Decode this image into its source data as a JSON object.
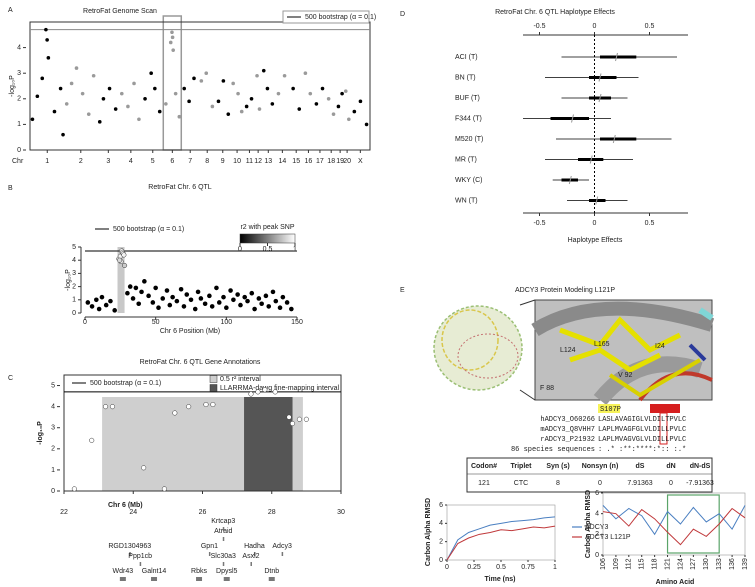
{
  "panel_labels": [
    "A",
    "B",
    "C",
    "D",
    "E"
  ],
  "chart_data": [
    {
      "type": "scatter",
      "title": "RetroFat Genome Scan",
      "y_label": "-log₁₀P",
      "x_label": "Chr",
      "xlim": [
        0,
        2778
      ],
      "ylim": [
        0,
        5
      ],
      "yticks": [
        0,
        1,
        2,
        3,
        4
      ],
      "xticks": [
        {
          "value": 141,
          "label": "1"
        },
        {
          "value": 415,
          "label": "2"
        },
        {
          "value": 640,
          "label": "3"
        },
        {
          "value": 824,
          "label": "4"
        },
        {
          "value": 1003,
          "label": "5"
        },
        {
          "value": 1163,
          "label": "6"
        },
        {
          "value": 1309,
          "label": "7"
        },
        {
          "value": 1448,
          "label": "8"
        },
        {
          "value": 1575,
          "label": "9"
        },
        {
          "value": 1692,
          "label": "10"
        },
        {
          "value": 1793,
          "label": "11"
        },
        {
          "value": 1864,
          "label": "12"
        },
        {
          "value": 1947,
          "label": "13"
        },
        {
          "value": 2062,
          "label": "14"
        },
        {
          "value": 2175,
          "label": "15"
        },
        {
          "value": 2275,
          "label": "16"
        },
        {
          "value": 2369,
          "label": "17"
        },
        {
          "value": 2461,
          "label": "18"
        },
        {
          "value": 2534,
          "label": "19"
        },
        {
          "value": 2591,
          "label": "20"
        },
        {
          "value": 2699,
          "label": "X"
        }
      ],
      "threshold": 4.7,
      "threshold_label": "500 bootstrap (α = 0.1)",
      "frame": true,
      "alternate_colors": [
        "#000000",
        "#9a9a9a"
      ],
      "regions": [
        {
          "x": [
            1089,
            1236
          ],
          "color": "#999999",
          "style": "outline"
        }
      ],
      "x": [
        20,
        60,
        100,
        130,
        140,
        150,
        200,
        250,
        270,
        300,
        340,
        380,
        430,
        480,
        520,
        570,
        600,
        650,
        700,
        750,
        800,
        850,
        890,
        940,
        990,
        1020,
        1060,
        1110,
        1150,
        1160,
        1165,
        1170,
        1190,
        1220,
        1260,
        1300,
        1340,
        1400,
        1440,
        1490,
        1540,
        1580,
        1620,
        1660,
        1700,
        1730,
        1770,
        1810,
        1855,
        1875,
        1910,
        1940,
        1980,
        2030,
        2080,
        2150,
        2200,
        2250,
        2290,
        2340,
        2390,
        2440,
        2480,
        2520,
        2550,
        2580,
        2605,
        2650,
        2700,
        2750
      ],
      "values": [
        1.2,
        2.1,
        2.8,
        4.7,
        4.3,
        3.6,
        1.5,
        2.4,
        0.6,
        1.8,
        2.6,
        3.2,
        2.2,
        1.4,
        2.9,
        1.1,
        2.0,
        2.4,
        1.6,
        2.2,
        1.7,
        2.6,
        1.2,
        2.0,
        3.0,
        2.4,
        1.5,
        1.8,
        4.2,
        4.6,
        4.4,
        3.9,
        2.2,
        1.3,
        2.4,
        1.9,
        2.8,
        2.7,
        3.0,
        1.7,
        1.9,
        2.7,
        1.4,
        2.6,
        2.2,
        1.5,
        1.7,
        2.0,
        2.9,
        1.6,
        3.1,
        2.4,
        1.8,
        2.2,
        2.9,
        2.4,
        1.6,
        3.0,
        2.2,
        1.8,
        2.4,
        2.0,
        1.4,
        1.7,
        2.2,
        2.3,
        1.2,
        1.5,
        1.9,
        1.0
      ]
    },
    {
      "type": "scatter",
      "title": "RetroFat Chr. 6 QTL",
      "y_label": "-log₁₀P",
      "x_label": "Chr 6 Position (Mb)",
      "xlim": [
        0,
        150
      ],
      "ylim": [
        0,
        5
      ],
      "xticks": [
        0,
        50,
        100,
        150
      ],
      "yticks": [
        0,
        1,
        2,
        3,
        4,
        5
      ],
      "threshold": 4.7,
      "threshold_label": "500 bootstrap (α = 0.1)",
      "frame": false,
      "colorbar": {
        "label": "r2 with peak SNP",
        "ticks": [
          0,
          0.5,
          1
        ]
      },
      "regions": [
        {
          "x": [
            23,
            28
          ],
          "color": "#c8c8c8"
        }
      ],
      "x": [
        24,
        25,
        26,
        26.5,
        27,
        27.5,
        25.5,
        28,
        24.5,
        2,
        5,
        8,
        10,
        12,
        15,
        18,
        21,
        30,
        32,
        34,
        36,
        38,
        40,
        42,
        45,
        48,
        50,
        52,
        55,
        58,
        60,
        62,
        65,
        68,
        70,
        72,
        75,
        78,
        80,
        82,
        85,
        88,
        90,
        93,
        95,
        98,
        100,
        103,
        105,
        108,
        110,
        113,
        115,
        118,
        120,
        123,
        125,
        128,
        130,
        133,
        135,
        138,
        140,
        143,
        146
      ],
      "values": [
        4.1,
        4.3,
        4.7,
        4.6,
        4.5,
        4.4,
        3.9,
        3.6,
        4.0,
        0.8,
        0.5,
        1.0,
        0.3,
        1.2,
        0.6,
        0.9,
        0.2,
        1.5,
        2.0,
        1.1,
        1.9,
        0.7,
        1.6,
        2.4,
        1.3,
        0.8,
        1.9,
        0.4,
        1.1,
        1.7,
        0.6,
        1.2,
        0.9,
        1.8,
        0.5,
        1.4,
        1.0,
        0.3,
        1.6,
        1.1,
        0.7,
        1.3,
        0.5,
        1.9,
        0.8,
        1.2,
        0.4,
        1.7,
        1.0,
        1.4,
        0.6,
        1.2,
        0.9,
        1.5,
        0.3,
        1.1,
        0.7,
        1.3,
        0.5,
        1.6,
        0.9,
        0.4,
        1.2,
        0.8,
        0.3
      ],
      "r2": [
        0.9,
        0.95,
        1,
        1,
        1,
        0.95,
        0.9,
        0.8,
        0.85,
        0,
        0,
        0,
        0,
        0,
        0,
        0,
        0,
        0,
        0,
        0,
        0,
        0,
        0,
        0,
        0,
        0,
        0,
        0,
        0,
        0,
        0,
        0,
        0,
        0,
        0,
        0,
        0,
        0,
        0,
        0,
        0,
        0,
        0,
        0,
        0,
        0,
        0,
        0,
        0,
        0,
        0,
        0,
        0,
        0,
        0,
        0,
        0,
        0,
        0,
        0,
        0,
        0,
        0,
        0,
        0
      ]
    },
    {
      "type": "scatter",
      "title": "RetroFat Chr. 6 QTL Gene Annotations",
      "y_label": "-log₁₀P",
      "x_label": "Chr 6 (Mb)",
      "xlim": [
        22,
        30
      ],
      "ylim": [
        0,
        5.5
      ],
      "xticks": [
        22,
        24,
        26,
        28,
        30
      ],
      "yticks": [
        0,
        1,
        2,
        3,
        4,
        5
      ],
      "threshold": 4.7,
      "threshold_label": "500 bootstrap (α = 0.1)",
      "frame": true,
      "point_color": "#ffffff",
      "regions": [
        {
          "label": "0.5 r² interval",
          "x": [
            23.1,
            28.9
          ],
          "color": "#cfcfcf"
        },
        {
          "label": "LLARRMA-dawg fine-mapping interval",
          "x": [
            27.2,
            28.6
          ],
          "color": "#555555"
        }
      ],
      "x": [
        22.3,
        22.8,
        23.2,
        23.4,
        24.3,
        24.9,
        25.2,
        25.6,
        26.1,
        26.3,
        27.4,
        27.6,
        27.8,
        28.1,
        28.5,
        28.6,
        28.8,
        29.0
      ],
      "values": [
        0.1,
        2.4,
        4.0,
        4.0,
        1.1,
        0.1,
        3.7,
        4.0,
        4.1,
        4.1,
        4.6,
        4.7,
        4.8,
        4.7,
        3.5,
        3.2,
        3.4,
        3.4
      ],
      "genes": [
        {
          "name": "Krtcap3",
          "start": 26.6
        },
        {
          "name": "Atraid",
          "start": 26.6
        },
        {
          "name": "RGD1304963",
          "start": 23.9
        },
        {
          "name": "Gpn1",
          "start": 26.2
        },
        {
          "name": "Hadha",
          "start": 27.5
        },
        {
          "name": "Adcy3",
          "start": 28.3
        },
        {
          "name": "Ppp1cb",
          "start": 24.2
        },
        {
          "name": "Slc30a3",
          "start": 26.6
        },
        {
          "name": "Asxl2",
          "start": 27.4
        },
        {
          "name": "Wdr43",
          "start": 23.7
        },
        {
          "name": "Galnt14",
          "start": 24.6
        },
        {
          "name": "Rbks",
          "start": 25.9
        },
        {
          "name": "Dpysl5",
          "start": 26.7
        },
        {
          "name": "Dtnb",
          "start": 28.0
        }
      ]
    },
    {
      "type": "forest",
      "title": "RetroFat Chr. 6 QTL Haplotype Effects",
      "x_label": "Haplotype Effects",
      "xlim": [
        -0.65,
        0.85
      ],
      "xticks": [
        -0.5,
        0,
        0.5
      ],
      "categories": [
        "ACI (T)",
        "BN (T)",
        "BUF (T)",
        "F344 (T)",
        "M520 (T)",
        "MR (T)",
        "WKY (C)",
        "WN (T)"
      ],
      "values": [
        0.2,
        0.05,
        0.05,
        -0.2,
        0.18,
        -0.03,
        -0.22,
        0.02
      ],
      "inner": [
        [
          0.05,
          0.38
        ],
        [
          -0.05,
          0.2
        ],
        [
          -0.05,
          0.15
        ],
        [
          -0.4,
          -0.05
        ],
        [
          0.05,
          0.38
        ],
        [
          -0.15,
          0.08
        ],
        [
          -0.3,
          -0.15
        ],
        [
          -0.05,
          0.1
        ]
      ],
      "outer": [
        [
          -0.3,
          0.75
        ],
        [
          -0.45,
          0.4
        ],
        [
          -0.3,
          0.3
        ],
        [
          -0.65,
          0.15
        ],
        [
          -0.35,
          0.7
        ],
        [
          -0.45,
          0.35
        ],
        [
          -0.38,
          -0.05
        ],
        [
          -0.25,
          0.3
        ]
      ]
    },
    {
      "type": "line",
      "y_label": "Carbon Alpha RMSD",
      "x_label": "Time (ns)",
      "xlim": [
        0,
        1
      ],
      "ylim": [
        0,
        6
      ],
      "xticks": [
        0,
        0.25,
        0.5,
        0.75,
        1
      ],
      "yticks": [
        0,
        2,
        4,
        6
      ],
      "x": [
        0,
        0.1,
        0.2,
        0.3,
        0.4,
        0.5,
        0.6,
        0.7,
        0.8,
        0.9,
        1
      ],
      "series": [
        {
          "name": "ADCY3",
          "color": "#4a7fc1",
          "values": [
            0,
            2.2,
            3.0,
            3.4,
            3.8,
            4.0,
            4.2,
            4.3,
            4.4,
            4.6,
            4.7
          ]
        },
        {
          "name": "ADCY3 L121P",
          "color": "#c0393b",
          "values": [
            0,
            1.8,
            2.4,
            2.8,
            3.0,
            3.3,
            3.2,
            3.4,
            3.6,
            3.5,
            3.7
          ]
        }
      ]
    },
    {
      "type": "line",
      "y_label": "Carbon Alpha RMSD",
      "x_label": "Amino Acid",
      "xlim": [
        106,
        139
      ],
      "ylim": [
        0,
        6
      ],
      "xticks": [
        106,
        109,
        112,
        115,
        118,
        121,
        124,
        127,
        130,
        133,
        136,
        139
      ],
      "yticks": [
        0,
        2,
        4,
        6
      ],
      "highlight_x": [
        121,
        133
      ],
      "highlight_color": "#5aa469",
      "x": [
        106,
        109,
        112,
        115,
        118,
        121,
        124,
        127,
        130,
        133,
        136,
        139
      ],
      "series": [
        {
          "color": "#4a7fc1",
          "values": [
            4.8,
            3.5,
            4.5,
            3.8,
            2.0,
            4.2,
            3.0,
            4.6,
            3.2,
            4.0,
            2.5,
            4.8
          ]
        },
        {
          "color": "#c0393b",
          "values": [
            4.2,
            4.0,
            2.8,
            4.4,
            3.5,
            2.2,
            1.0,
            2.5,
            1.8,
            3.0,
            4.5,
            3.6
          ]
        }
      ]
    }
  ],
  "protein": {
    "title": "ADCY3 Protein Modeling L121P",
    "residue_labels": [
      "L124",
      "L165",
      "I24",
      "V 92",
      "F 88"
    ],
    "mutation_label": "S107P",
    "alignment": [
      {
        "name": "hADCY3_O60266",
        "seq": "LASLAVAGIGLVLDILTPVLC"
      },
      {
        "name": "mADCY3_Q8VHH7",
        "seq": "LAPLMVAGFGLVLDILLPVLC"
      },
      {
        "name": "rADCY3_P21932",
        "seq": "LAPLMVAGVGLVLDILLPVLC"
      },
      {
        "name": "86 species sequences",
        "seq": ": .* :**:****:*:: :.*"
      }
    ],
    "table": {
      "header": [
        "Codon#",
        "Triplet",
        "Syn (s)",
        "Nonsyn (n)",
        "dS",
        "dN",
        "dN-dS"
      ],
      "rows": [
        [
          121,
          "CTC",
          8,
          0,
          7.91363,
          0,
          -7.91363
        ]
      ]
    }
  }
}
